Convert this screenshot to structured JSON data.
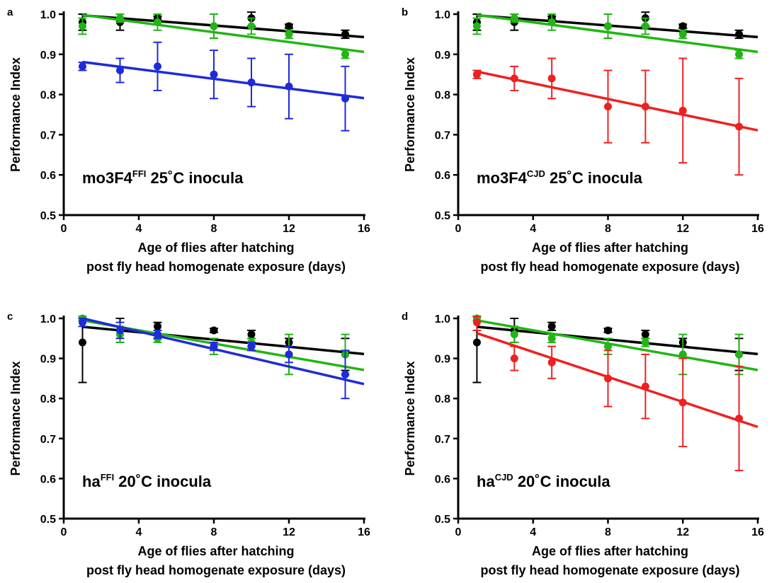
{
  "colors": {
    "black": "#000000",
    "green": "#22b515",
    "blue": "#1f2bd9",
    "red": "#ee2020"
  },
  "chart_data": [
    {
      "panel": "a",
      "type": "scatter",
      "xlabel": [
        "Age of flies after hatching",
        "post fly head homogenate  exposure (days)"
      ],
      "ylabel": "Performance Index",
      "xlim": [
        0,
        16
      ],
      "ylim": [
        0.5,
        1.0
      ],
      "xticks": [
        "0",
        "4",
        "8",
        "12",
        "16"
      ],
      "yticks": [
        "0.5",
        "0.6",
        "0.7",
        "0.8",
        "0.9",
        "1.0"
      ],
      "label": {
        "main": "mo3F4",
        "sup": "FFI",
        "rest": " 25˚C inocula"
      },
      "series": [
        {
          "color": "black",
          "x": [
            1,
            3,
            5,
            8,
            10,
            12,
            15
          ],
          "y": [
            0.98,
            0.98,
            0.99,
            0.97,
            0.99,
            0.97,
            0.95
          ],
          "err": [
            0.02,
            0.02,
            0.005,
            0.03,
            0.02,
            0.005,
            0.01
          ],
          "fit": [
            [
              1,
              0.997
            ],
            [
              16,
              0.943
            ]
          ]
        },
        {
          "color": "green",
          "x": [
            1,
            3,
            5,
            8,
            10,
            12,
            15
          ],
          "y": [
            0.97,
            0.99,
            0.98,
            0.97,
            0.97,
            0.95,
            0.9
          ],
          "err": [
            0.02,
            0.01,
            0.02,
            0.03,
            0.02,
            0.01,
            0.01
          ],
          "fit": [
            [
              1,
              0.998
            ],
            [
              16,
              0.906
            ]
          ]
        },
        {
          "color": "blue",
          "x": [
            1,
            3,
            5,
            8,
            10,
            12,
            15
          ],
          "y": [
            0.87,
            0.86,
            0.87,
            0.85,
            0.83,
            0.82,
            0.79
          ],
          "err": [
            0.01,
            0.03,
            0.06,
            0.06,
            0.06,
            0.08,
            0.08
          ],
          "fit": [
            [
              1,
              0.881
            ],
            [
              16,
              0.791
            ]
          ]
        }
      ]
    },
    {
      "panel": "b",
      "type": "scatter",
      "xlabel": [
        "Age of flies after hatching",
        "post fly head homogenate  exposure (days)"
      ],
      "ylabel": "Performance Index",
      "xlim": [
        0,
        16
      ],
      "ylim": [
        0.5,
        1.0
      ],
      "xticks": [
        "0",
        "4",
        "8",
        "12",
        "16"
      ],
      "yticks": [
        "0.5",
        "0.6",
        "0.7",
        "0.8",
        "0.9",
        "1.0"
      ],
      "label": {
        "main": "mo3F4",
        "sup": "CJD",
        "rest": " 25˚C inocula"
      },
      "series": [
        {
          "color": "black",
          "x": [
            1,
            3,
            5,
            8,
            10,
            12,
            15
          ],
          "y": [
            0.98,
            0.98,
            0.99,
            0.97,
            0.99,
            0.97,
            0.95
          ],
          "err": [
            0.02,
            0.02,
            0.005,
            0.03,
            0.02,
            0.005,
            0.01
          ],
          "fit": [
            [
              1,
              0.997
            ],
            [
              16,
              0.943
            ]
          ]
        },
        {
          "color": "green",
          "x": [
            1,
            3,
            5,
            8,
            10,
            12,
            15
          ],
          "y": [
            0.97,
            0.99,
            0.98,
            0.97,
            0.97,
            0.95,
            0.9
          ],
          "err": [
            0.02,
            0.01,
            0.02,
            0.03,
            0.02,
            0.01,
            0.01
          ],
          "fit": [
            [
              1,
              0.998
            ],
            [
              16,
              0.906
            ]
          ]
        },
        {
          "color": "red",
          "x": [
            1,
            3,
            5,
            8,
            10,
            12,
            15
          ],
          "y": [
            0.85,
            0.84,
            0.84,
            0.77,
            0.77,
            0.76,
            0.72
          ],
          "err": [
            0.01,
            0.03,
            0.05,
            0.09,
            0.09,
            0.13,
            0.12
          ],
          "fit": [
            [
              1,
              0.857
            ],
            [
              16,
              0.711
            ]
          ]
        }
      ]
    },
    {
      "panel": "c",
      "type": "scatter",
      "xlabel": [
        "Age of flies after hatching",
        "post fly head homogenate  exposure (days)"
      ],
      "ylabel": "Performance Index",
      "xlim": [
        0,
        16
      ],
      "ylim": [
        0.5,
        1.0
      ],
      "xticks": [
        "0",
        "4",
        "8",
        "12",
        "16"
      ],
      "yticks": [
        "0.5",
        "0.6",
        "0.7",
        "0.8",
        "0.9",
        "1.0"
      ],
      "label": {
        "main": "ha",
        "sup": "FFI",
        "rest": " 20˚C inocula"
      },
      "series": [
        {
          "color": "black",
          "x": [
            1,
            3,
            5,
            8,
            10,
            12,
            15
          ],
          "y": [
            0.94,
            0.97,
            0.98,
            0.97,
            0.96,
            0.94,
            0.91
          ],
          "err": [
            0.1,
            0.03,
            0.01,
            0.005,
            0.01,
            0.01,
            0.04
          ],
          "fit": [
            [
              1,
              0.979
            ],
            [
              16,
              0.911
            ]
          ]
        },
        {
          "color": "green",
          "x": [
            1,
            3,
            5,
            8,
            10,
            12,
            15
          ],
          "y": [
            1.0,
            0.96,
            0.95,
            0.93,
            0.94,
            0.91,
            0.91
          ],
          "err": [
            0.005,
            0.02,
            0.01,
            0.02,
            0.01,
            0.05,
            0.05
          ],
          "fit": [
            [
              1,
              0.995
            ],
            [
              16,
              0.871
            ]
          ]
        },
        {
          "color": "blue",
          "x": [
            1,
            3,
            5,
            8,
            10,
            12,
            15
          ],
          "y": [
            0.99,
            0.97,
            0.96,
            0.93,
            0.93,
            0.91,
            0.86
          ],
          "err": [
            0.01,
            0.02,
            0.01,
            0.01,
            0.01,
            0.02,
            0.06
          ],
          "fit": [
            [
              1,
              1.0
            ],
            [
              16,
              0.836
            ]
          ]
        }
      ]
    },
    {
      "panel": "d",
      "type": "scatter",
      "xlabel": [
        "Age of flies after hatching",
        "post fly head homogenate  exposure (days)"
      ],
      "ylabel": "Performance Index",
      "xlim": [
        0,
        16
      ],
      "ylim": [
        0.5,
        1.0
      ],
      "xticks": [
        "0",
        "4",
        "8",
        "12",
        "16"
      ],
      "yticks": [
        "0.5",
        "0.6",
        "0.7",
        "0.8",
        "0.9",
        "1.0"
      ],
      "label": {
        "main": "ha",
        "sup": "CJD",
        "rest": " 20˚C inocula"
      },
      "series": [
        {
          "color": "black",
          "x": [
            1,
            3,
            5,
            8,
            10,
            12,
            15
          ],
          "y": [
            0.94,
            0.97,
            0.98,
            0.97,
            0.96,
            0.94,
            0.91
          ],
          "err": [
            0.1,
            0.03,
            0.01,
            0.005,
            0.01,
            0.01,
            0.04
          ],
          "fit": [
            [
              1,
              0.979
            ],
            [
              16,
              0.911
            ]
          ]
        },
        {
          "color": "green",
          "x": [
            1,
            3,
            5,
            8,
            10,
            12,
            15
          ],
          "y": [
            1.0,
            0.96,
            0.95,
            0.93,
            0.94,
            0.91,
            0.91
          ],
          "err": [
            0.005,
            0.02,
            0.01,
            0.02,
            0.01,
            0.05,
            0.05
          ],
          "fit": [
            [
              1,
              0.995
            ],
            [
              16,
              0.871
            ]
          ]
        },
        {
          "color": "red",
          "x": [
            1,
            3,
            5,
            8,
            10,
            12,
            15
          ],
          "y": [
            0.99,
            0.9,
            0.89,
            0.85,
            0.83,
            0.79,
            0.75
          ],
          "err": [
            0.02,
            0.03,
            0.04,
            0.07,
            0.08,
            0.11,
            0.13
          ],
          "fit": [
            [
              1,
              0.963
            ],
            [
              16,
              0.729
            ]
          ]
        }
      ]
    }
  ]
}
